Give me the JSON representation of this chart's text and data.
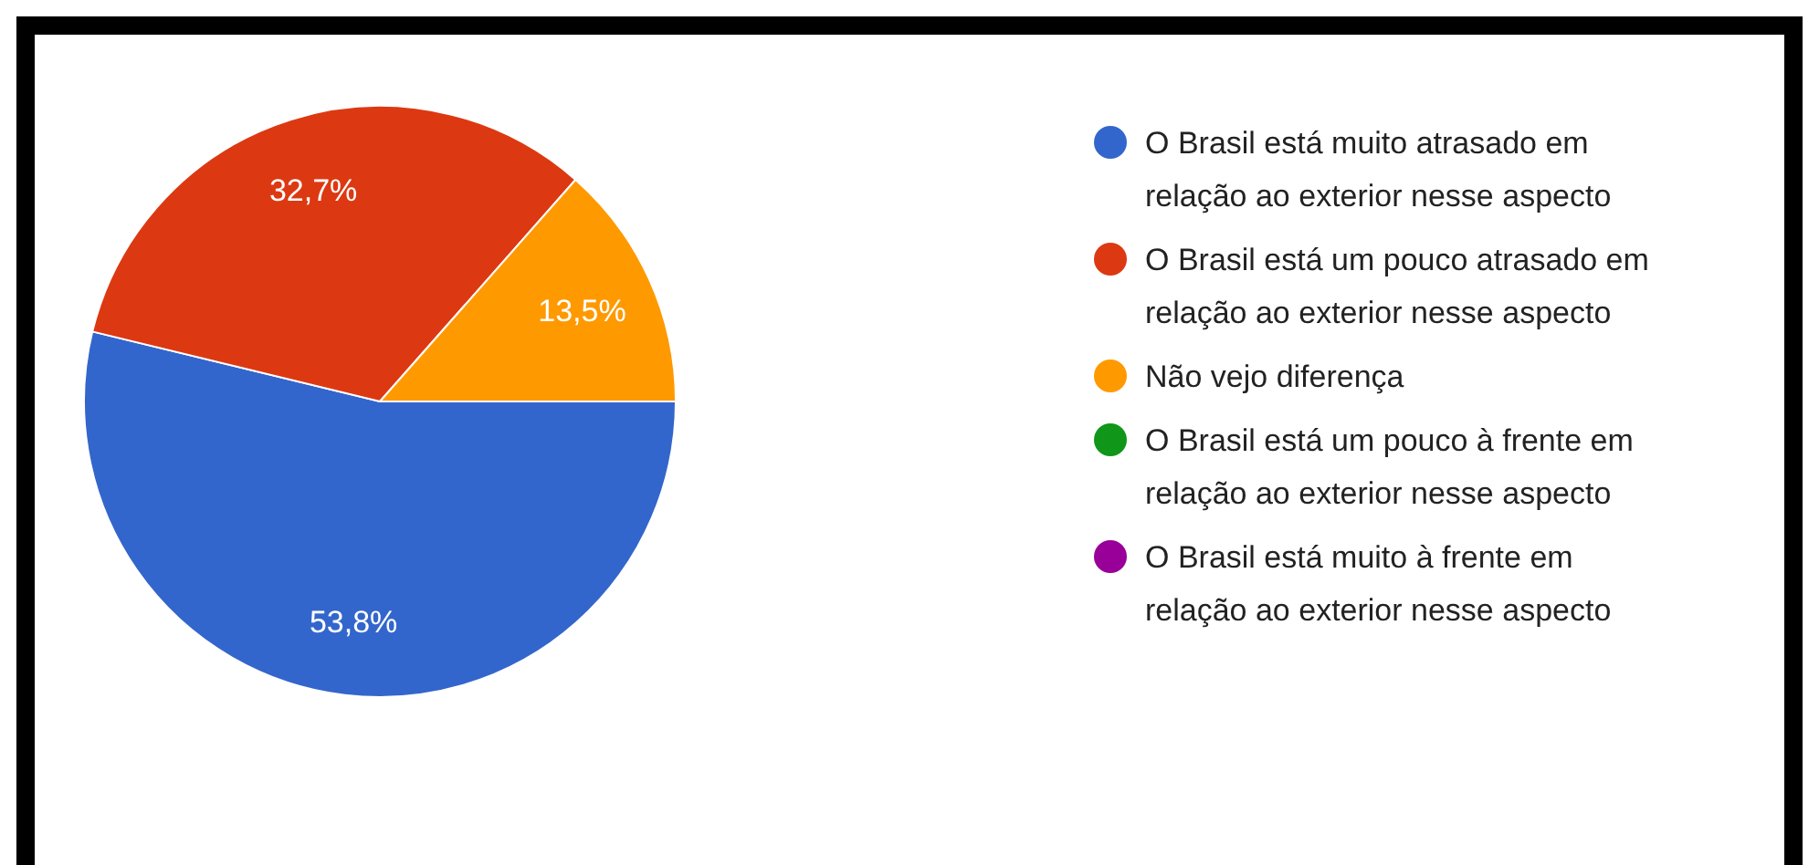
{
  "chart_data": {
    "type": "pie",
    "categories": [
      "O Brasil está muito atrasado em relação ao exterior nesse aspecto",
      "O Brasil está um pouco atrasado em relação ao exterior nesse aspecto",
      "Não vejo diferença",
      "O Brasil está um pouco à frente em relação ao exterior nesse aspecto",
      "O Brasil está muito à frente em relação ao exterior nesse aspecto"
    ],
    "values": [
      53.8,
      32.7,
      13.5,
      0,
      0
    ],
    "value_labels": [
      "53,8%",
      "32,7%",
      "13,5%",
      null,
      null
    ],
    "colors": [
      "#3366cc",
      "#dc3912",
      "#ff9900",
      "#109618",
      "#990099"
    ],
    "legend": "right"
  }
}
